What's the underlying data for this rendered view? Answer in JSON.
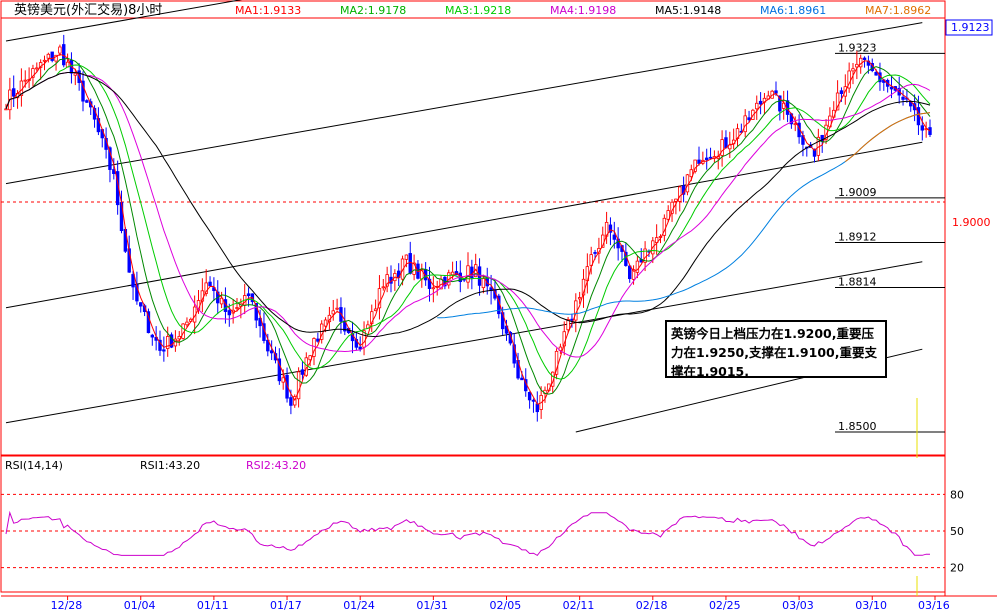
{
  "chart_data": {
    "type": "candlestick",
    "title": "英镑美元(外汇交易)8小时",
    "period": "8小时",
    "ma_legend": [
      {
        "label": "MA1:1.9133",
        "color": "#ff0000"
      },
      {
        "label": "MA2:1.9178",
        "color": "#00b000"
      },
      {
        "label": "MA3:1.9218",
        "color": "#00cc00"
      },
      {
        "label": "MA4:1.9198",
        "color": "#cc00cc"
      },
      {
        "label": "MA5:1.9148",
        "color": "#000000"
      },
      {
        "label": "MA6:1.8961",
        "color": "#0070e0"
      },
      {
        "label": "MA7:1.8962",
        "color": "#e07000"
      }
    ],
    "price_axis": {
      "ylim": [
        1.845,
        1.94
      ],
      "ticks": [
        "1.9000"
      ],
      "last_price": "1.9123"
    },
    "x_ticks": [
      "12/28",
      "01/04",
      "01/11",
      "01/17",
      "01/24",
      "01/31",
      "02/05",
      "02/11",
      "02/18",
      "02/25",
      "03/03",
      "03/10",
      "03/16"
    ],
    "levels": [
      {
        "label": "1.9323",
        "price": 1.9323
      },
      {
        "label": "1.9009",
        "price": 1.9009
      },
      {
        "label": "1.8912",
        "price": 1.8912
      },
      {
        "label": "1.8814",
        "price": 1.8814
      },
      {
        "label": "1.8500",
        "price": 1.85
      }
    ],
    "anchors": [
      [
        0,
        1.922
      ],
      [
        8,
        1.929
      ],
      [
        14,
        1.933
      ],
      [
        22,
        1.92
      ],
      [
        28,
        1.905
      ],
      [
        33,
        1.88
      ],
      [
        40,
        1.868
      ],
      [
        46,
        1.872
      ],
      [
        52,
        1.883
      ],
      [
        58,
        1.875
      ],
      [
        63,
        1.88
      ],
      [
        68,
        1.868
      ],
      [
        74,
        1.857
      ],
      [
        80,
        1.87
      ],
      [
        86,
        1.876
      ],
      [
        92,
        1.869
      ],
      [
        98,
        1.882
      ],
      [
        104,
        1.887
      ],
      [
        110,
        1.882
      ],
      [
        116,
        1.884
      ],
      [
        122,
        1.885
      ],
      [
        128,
        1.876
      ],
      [
        134,
        1.86
      ],
      [
        138,
        1.855
      ],
      [
        144,
        1.868
      ],
      [
        150,
        1.883
      ],
      [
        156,
        1.895
      ],
      [
        162,
        1.885
      ],
      [
        168,
        1.891
      ],
      [
        174,
        1.9
      ],
      [
        180,
        1.91
      ],
      [
        186,
        1.912
      ],
      [
        192,
        1.917
      ],
      [
        198,
        1.924
      ],
      [
        204,
        1.918
      ],
      [
        210,
        1.91
      ],
      [
        216,
        1.924
      ],
      [
        222,
        1.93
      ],
      [
        228,
        1.926
      ],
      [
        234,
        1.921
      ],
      [
        240,
        1.913
      ]
    ],
    "ma_series": [
      {
        "name": "MA1",
        "color": "#ff0000",
        "window": 3
      },
      {
        "name": "MA2",
        "color": "#008800",
        "window": 8
      },
      {
        "name": "MA3",
        "color": "#00cc00",
        "window": 14
      },
      {
        "name": "MA4",
        "color": "#dd00dd",
        "window": 22
      },
      {
        "name": "MA5",
        "color": "#000000",
        "window": 40
      },
      {
        "name": "MA6",
        "color": "#0080e0",
        "start": 112,
        "window": 60
      },
      {
        "name": "MA7",
        "color": "#e07000",
        "start": 218,
        "window": 60
      }
    ],
    "trend_lines": [
      {
        "p1": [
          0,
          1.935
        ],
        "p2": [
          238,
          1.97
        ]
      },
      {
        "p1": [
          0,
          1.904
        ],
        "p2": [
          238,
          1.939
        ]
      },
      {
        "p1": [
          0,
          1.877
        ],
        "p2": [
          238,
          1.913
        ]
      },
      {
        "p1": [
          0,
          1.852
        ],
        "p2": [
          238,
          1.887
        ]
      },
      {
        "p1": [
          148,
          1.85
        ],
        "p2": [
          238,
          1.868
        ]
      }
    ],
    "rsi": {
      "label": "RSI(14,14)",
      "rsi1_label": "RSI1:43.20",
      "rsi2_label": "RSI2:43.20",
      "ticks": [
        "80",
        "50",
        "20"
      ],
      "ylim": [
        0,
        100
      ]
    }
  },
  "note": {
    "text": "英镑今日上档压力在1.9200,重要压力在1.9250,支撑在1.9100,重要支撑在1.9015."
  },
  "colors": {
    "frame": "#ff0000",
    "up": "#ff0000",
    "down": "#0000ff",
    "axis_text": "#0000ff",
    "grid": "#ff0000"
  }
}
